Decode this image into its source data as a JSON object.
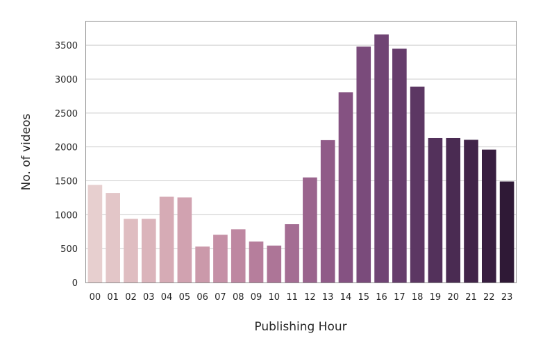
{
  "chart_data": {
    "type": "bar",
    "title": "",
    "xlabel": "Publishing Hour",
    "ylabel": "No. of videos",
    "categories": [
      "00",
      "01",
      "02",
      "03",
      "04",
      "05",
      "06",
      "07",
      "08",
      "09",
      "10",
      "11",
      "12",
      "13",
      "14",
      "15",
      "16",
      "17",
      "18",
      "19",
      "20",
      "21",
      "22",
      "23"
    ],
    "values": [
      1440,
      1320,
      940,
      940,
      1265,
      1255,
      530,
      705,
      785,
      605,
      545,
      860,
      1550,
      2100,
      2805,
      3480,
      3660,
      3450,
      2890,
      2130,
      2130,
      2105,
      1960,
      1490
    ],
    "ylim": [
      0,
      3850
    ],
    "yticks": [
      0,
      500,
      1000,
      1500,
      2000,
      2500,
      3000,
      3500
    ],
    "grid": "horizontal",
    "colors": [
      "#e7cfcf",
      "#e3c6c8",
      "#dfbdc1",
      "#dbb4bb",
      "#d6abb5",
      "#d1a2b0",
      "#cb99aa",
      "#c590a6",
      "#be87a1",
      "#b67e9c",
      "#ad7597",
      "#a46d93",
      "#9a648d",
      "#905b88",
      "#855282",
      "#7a4b7b",
      "#704474",
      "#663d6c",
      "#5c3763",
      "#53315b",
      "#4a2b52",
      "#412449",
      "#381e40",
      "#2f1936"
    ]
  }
}
